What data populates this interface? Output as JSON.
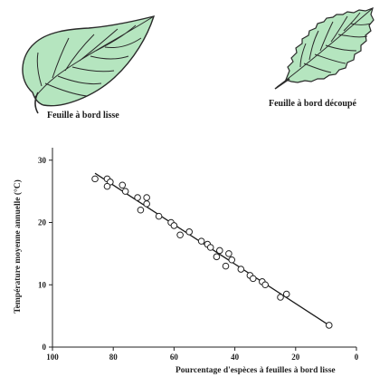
{
  "leaves": {
    "smooth_caption": "Feuille à bord lisse",
    "toothed_caption": "Feuille à bord découpé",
    "leaf_color": "#b5e5bf",
    "outline_color": "#2a2a2a"
  },
  "chart_data": {
    "type": "scatter",
    "title": "",
    "xlabel": "Pourcentage d'espèces à feuilles à bord lisse",
    "ylabel": "Température moyenne annuelle (°C)",
    "xlim": [
      100,
      0
    ],
    "ylim": [
      0,
      32
    ],
    "x_reversed": true,
    "x_ticks": [
      100,
      80,
      60,
      40,
      20,
      0
    ],
    "y_ticks": [
      0,
      10,
      20,
      30
    ],
    "grid": false,
    "marker": "open-circle",
    "points": [
      {
        "x": 86,
        "y": 27
      },
      {
        "x": 82,
        "y": 27
      },
      {
        "x": 81,
        "y": 26.5
      },
      {
        "x": 82,
        "y": 25.8
      },
      {
        "x": 77,
        "y": 26
      },
      {
        "x": 76,
        "y": 25
      },
      {
        "x": 72,
        "y": 24
      },
      {
        "x": 69,
        "y": 24
      },
      {
        "x": 69,
        "y": 23
      },
      {
        "x": 71,
        "y": 22
      },
      {
        "x": 65,
        "y": 21
      },
      {
        "x": 61,
        "y": 20
      },
      {
        "x": 60,
        "y": 19.5
      },
      {
        "x": 58,
        "y": 18
      },
      {
        "x": 55,
        "y": 18.5
      },
      {
        "x": 51,
        "y": 17
      },
      {
        "x": 49,
        "y": 16.5
      },
      {
        "x": 48,
        "y": 16
      },
      {
        "x": 46,
        "y": 14.5
      },
      {
        "x": 45,
        "y": 15.5
      },
      {
        "x": 42,
        "y": 15
      },
      {
        "x": 41,
        "y": 14
      },
      {
        "x": 43,
        "y": 13
      },
      {
        "x": 38,
        "y": 12.5
      },
      {
        "x": 35,
        "y": 11.5
      },
      {
        "x": 34,
        "y": 11
      },
      {
        "x": 31,
        "y": 10.5
      },
      {
        "x": 30,
        "y": 10
      },
      {
        "x": 25,
        "y": 8
      },
      {
        "x": 23,
        "y": 8.5
      },
      {
        "x": 9,
        "y": 3.5
      }
    ],
    "trendline": {
      "x": [
        86,
        9
      ],
      "y": [
        27.9,
        3.5
      ]
    }
  }
}
